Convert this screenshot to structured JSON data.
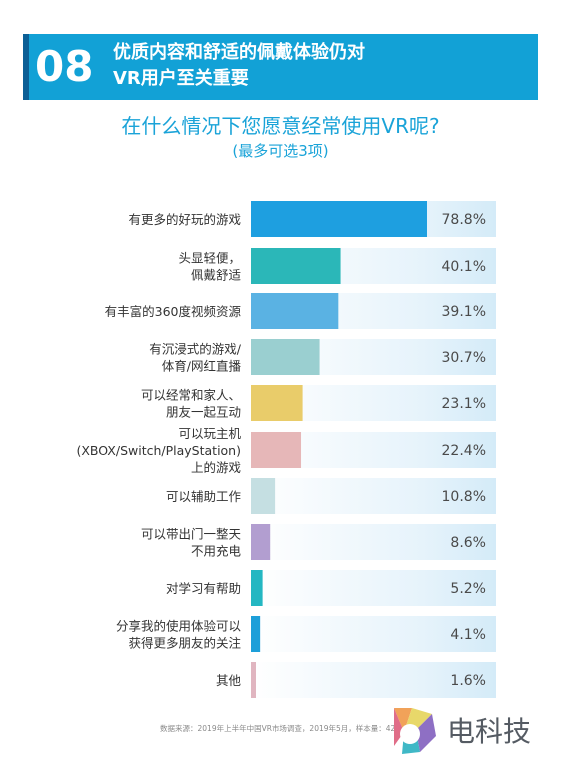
{
  "header": {
    "number": "08",
    "title_line1": "优质内容和舒适的佩戴体验仍对",
    "title_line2": "VR用户至关重要"
  },
  "question": "在什么情况下您愿意经常使用VR呢?",
  "question_note": "(最多可选3项)",
  "source_note": "数据来源：2019年上半年中国VR市场调查，2019年5月，样本量：4200+",
  "brand": {
    "name": "电科技",
    "trademark": "®"
  },
  "chart_data": {
    "type": "bar",
    "orientation": "horizontal",
    "value_unit": "%",
    "xlim": [
      0,
      100
    ],
    "grid": false,
    "categories": [
      [
        "有更多的好玩的游戏"
      ],
      [
        "头显轻便，",
        "佩戴舒适"
      ],
      [
        "有丰富的360度视频资源"
      ],
      [
        "有沉浸式的游戏/",
        "体育/网红直播"
      ],
      [
        "可以经常和家人、",
        "朋友一起互动"
      ],
      [
        "可以玩主机",
        "(XBOX/Switch/PlayStation)",
        "上的游戏"
      ],
      [
        "可以辅助工作"
      ],
      [
        "可以带出门一整天",
        "不用充电"
      ],
      [
        "对学习有帮助"
      ],
      [
        "分享我的使用体验可以",
        "获得更多朋友的关注"
      ],
      [
        "其他"
      ]
    ],
    "values": [
      78.8,
      40.1,
      39.1,
      30.7,
      23.1,
      22.4,
      10.8,
      8.6,
      5.2,
      4.1,
      1.6
    ],
    "value_labels": [
      "78.8%",
      "40.1%",
      "39.1%",
      "30.7%",
      "23.1%",
      "22.4%",
      "10.8%",
      "8.6%",
      "5.2%",
      "4.1%",
      "1.6%"
    ],
    "bar_colors": [
      "#1e9fe0",
      "#2bb7b8",
      "#5ab2e3",
      "#9acfd0",
      "#e9cc6a",
      "#e6b7b8",
      "#c5dfe2",
      "#b29ed0",
      "#24b7c2",
      "#1d9fd9",
      "#e0b5c0"
    ]
  }
}
